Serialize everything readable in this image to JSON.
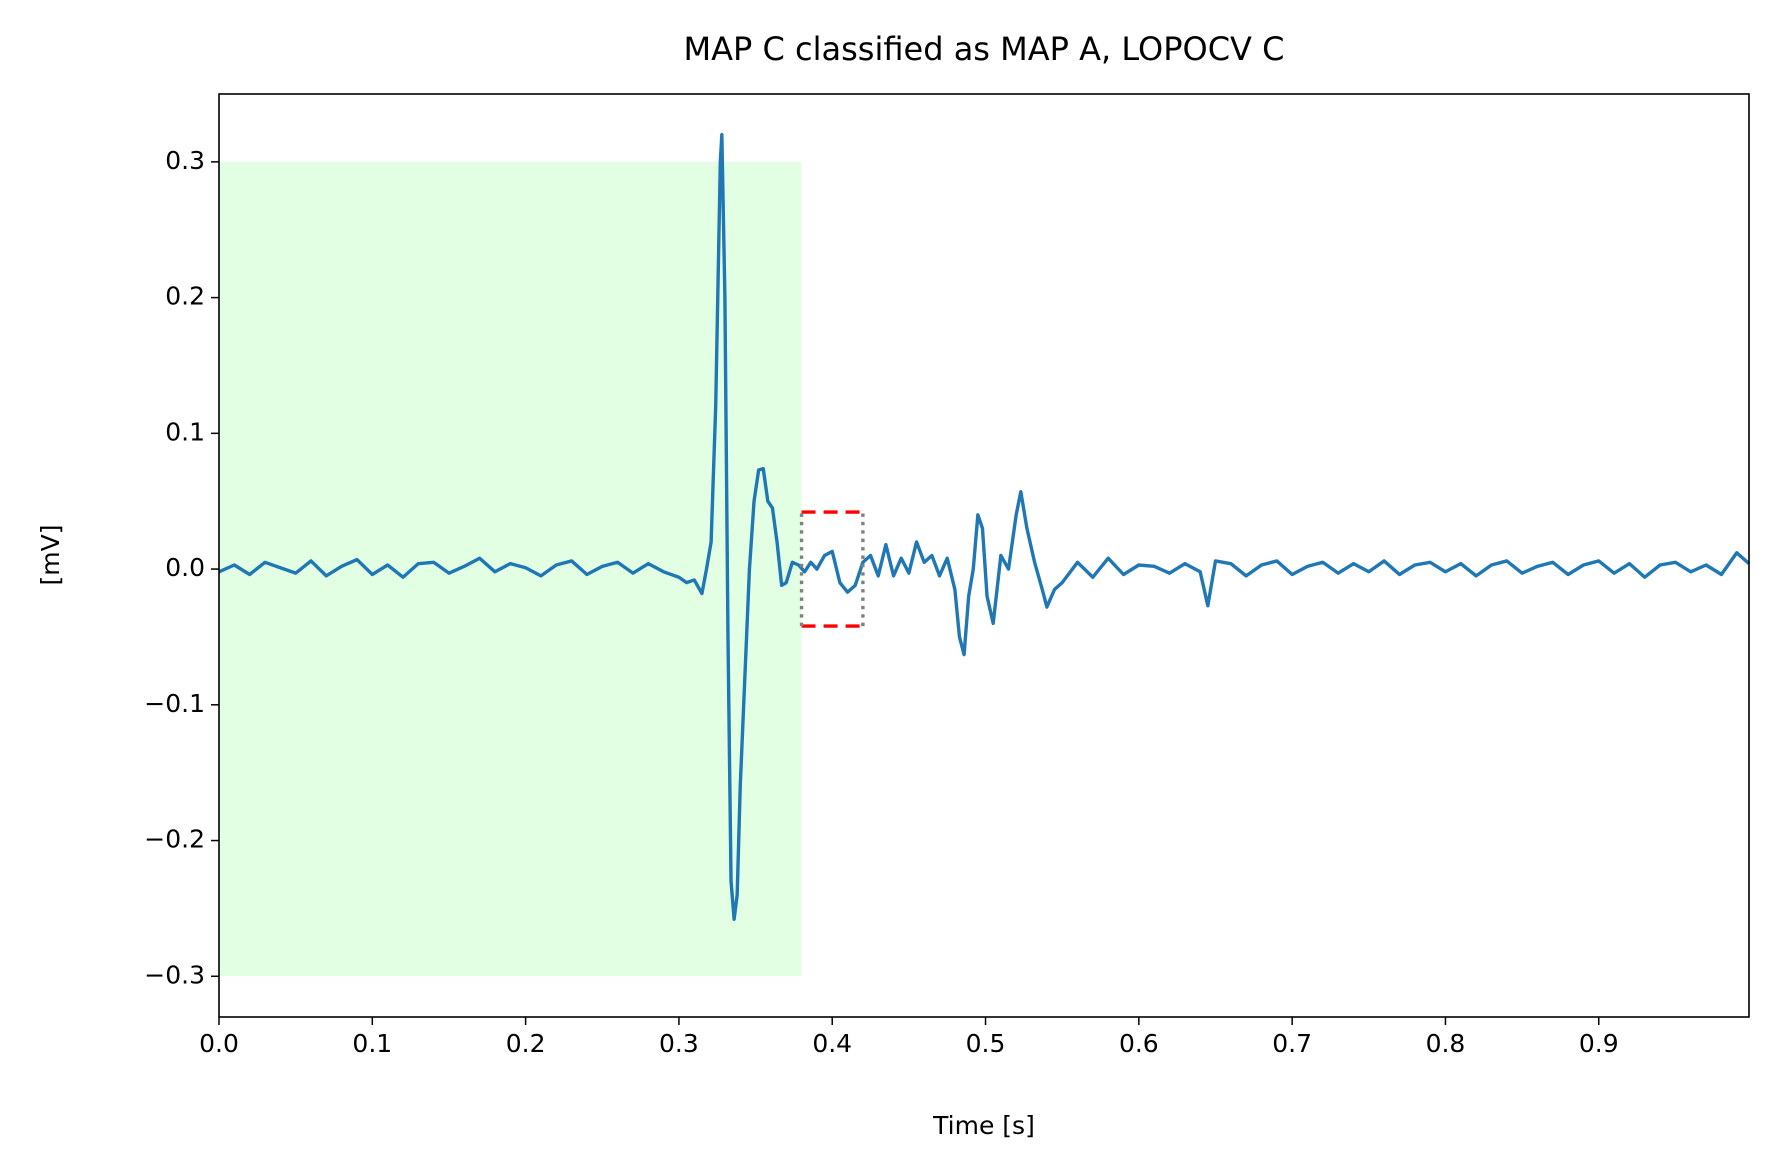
{
  "chart_data": {
    "type": "line",
    "title": "MAP C classified as MAP A, LOPOCV C",
    "x_label": "Time [s]",
    "y_label": "[mV]",
    "xlim": [
      0,
      0.998
    ],
    "ylim": [
      -0.33,
      0.35
    ],
    "xticks": [
      {
        "value": 0,
        "label": "0.0"
      },
      0.1,
      0.2,
      0.3,
      0.4,
      0.5,
      0.6,
      0.7,
      0.8,
      0.9
    ],
    "yticks": [
      {
        "value": -0.3,
        "label": "−0.3"
      },
      {
        "value": -0.2,
        "label": "−0.2"
      },
      {
        "value": -0.1,
        "label": "−0.1"
      },
      {
        "value": 0,
        "label": "0.0"
      },
      0.1,
      0.2,
      0.3
    ],
    "shaded_region": {
      "x": [
        0,
        0.38
      ],
      "y": [
        -0.3,
        0.3
      ],
      "color": "#e3ffe3"
    },
    "window_box": {
      "x": [
        0.38,
        0.42
      ],
      "y": [
        -0.042,
        0.042
      ],
      "edge_color": "#ff0000",
      "side_color": "#808080"
    },
    "series": [
      {
        "color": "#1f77b4",
        "x": [
          0,
          0.01,
          0.02,
          0.03,
          0.04,
          0.05,
          0.06,
          0.07,
          0.08,
          0.09,
          0.1,
          0.11,
          0.12,
          0.13,
          0.14,
          0.15,
          0.16,
          0.17,
          0.18,
          0.19,
          0.2,
          0.21,
          0.22,
          0.23,
          0.24,
          0.25,
          0.26,
          0.27,
          0.28,
          0.29,
          0.3,
          0.305,
          0.31,
          0.315,
          0.318,
          0.321,
          0.324,
          0.327,
          0.328,
          0.33,
          0.332,
          0.334,
          0.336,
          0.338,
          0.34,
          0.343,
          0.346,
          0.349,
          0.352,
          0.355,
          0.358,
          0.361,
          0.364,
          0.367,
          0.37,
          0.374,
          0.378,
          0.382,
          0.386,
          0.39,
          0.395,
          0.4,
          0.405,
          0.41,
          0.415,
          0.42,
          0.425,
          0.43,
          0.435,
          0.44,
          0.445,
          0.45,
          0.455,
          0.46,
          0.465,
          0.47,
          0.475,
          0.48,
          0.483,
          0.486,
          0.489,
          0.492,
          0.495,
          0.498,
          0.501,
          0.505,
          0.51,
          0.515,
          0.52,
          0.523,
          0.527,
          0.532,
          0.537,
          0.54,
          0.545,
          0.55,
          0.56,
          0.57,
          0.58,
          0.59,
          0.6,
          0.61,
          0.62,
          0.63,
          0.64,
          0.645,
          0.65,
          0.66,
          0.67,
          0.68,
          0.69,
          0.7,
          0.71,
          0.72,
          0.73,
          0.74,
          0.75,
          0.76,
          0.77,
          0.78,
          0.79,
          0.8,
          0.81,
          0.82,
          0.83,
          0.84,
          0.85,
          0.86,
          0.87,
          0.88,
          0.89,
          0.9,
          0.91,
          0.92,
          0.93,
          0.94,
          0.95,
          0.96,
          0.97,
          0.98,
          0.99,
          0.998
        ],
        "values": [
          -0.002,
          0.003,
          -0.004,
          0.005,
          0.001,
          -0.003,
          0.006,
          -0.005,
          0.002,
          0.007,
          -0.004,
          0.003,
          -0.006,
          0.004,
          0.005,
          -0.003,
          0.002,
          0.008,
          -0.002,
          0.004,
          0.001,
          -0.005,
          0.003,
          0.006,
          -0.004,
          0.002,
          0.005,
          -0.003,
          0.004,
          -0.002,
          -0.006,
          -0.01,
          -0.008,
          -0.018,
          0.0,
          0.02,
          0.12,
          0.3,
          0.32,
          0.2,
          -0.05,
          -0.23,
          -0.258,
          -0.24,
          -0.16,
          -0.08,
          0.0,
          0.05,
          0.073,
          0.074,
          0.05,
          0.045,
          0.02,
          -0.012,
          -0.01,
          0.005,
          0.003,
          -0.002,
          0.005,
          0.0,
          0.01,
          0.013,
          -0.01,
          -0.017,
          -0.012,
          0.005,
          0.01,
          -0.005,
          0.018,
          -0.005,
          0.008,
          -0.003,
          0.02,
          0.005,
          0.01,
          -0.005,
          0.008,
          -0.015,
          -0.05,
          -0.063,
          -0.02,
          0.0,
          0.04,
          0.03,
          -0.02,
          -0.04,
          0.01,
          0.0,
          0.04,
          0.057,
          0.03,
          0.005,
          -0.015,
          -0.028,
          -0.015,
          -0.01,
          0.005,
          -0.006,
          0.008,
          -0.004,
          0.003,
          0.002,
          -0.003,
          0.004,
          -0.002,
          -0.027,
          0.006,
          0.004,
          -0.005,
          0.003,
          0.006,
          -0.004,
          0.002,
          0.005,
          -0.003,
          0.004,
          -0.002,
          0.006,
          -0.004,
          0.003,
          0.005,
          -0.002,
          0.004,
          -0.005,
          0.003,
          0.006,
          -0.003,
          0.002,
          0.005,
          -0.004,
          0.003,
          0.006,
          -0.003,
          0.004,
          -0.006,
          0.003,
          0.005,
          -0.002,
          0.003,
          -0.004,
          0.012,
          0.004
        ]
      }
    ]
  }
}
